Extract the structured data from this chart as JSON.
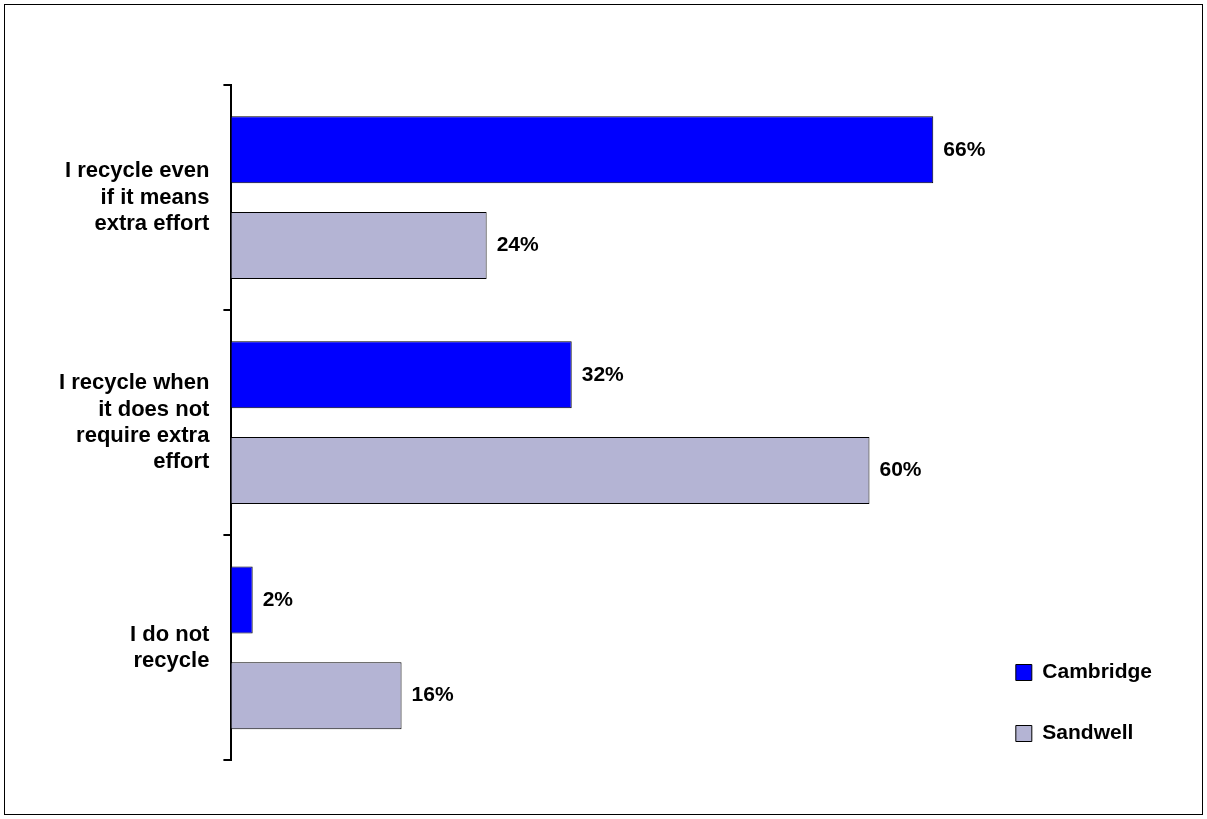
{
  "chart_data": {
    "type": "bar",
    "orientation": "horizontal",
    "categories": [
      "I recycle even if it means extra effort",
      "I recycle when it does not require extra effort",
      "I do not recycle"
    ],
    "series": [
      {
        "name": "Cambridge",
        "color": "#0000ff",
        "values": [
          66,
          32,
          2
        ],
        "value_labels": [
          "66%",
          "32%",
          "2%"
        ]
      },
      {
        "name": "Sandwell",
        "color": "#b4b4d4",
        "values": [
          24,
          60,
          16
        ],
        "value_labels": [
          "24%",
          "60%",
          "16%"
        ]
      }
    ],
    "legend": "right",
    "grid": false
  }
}
